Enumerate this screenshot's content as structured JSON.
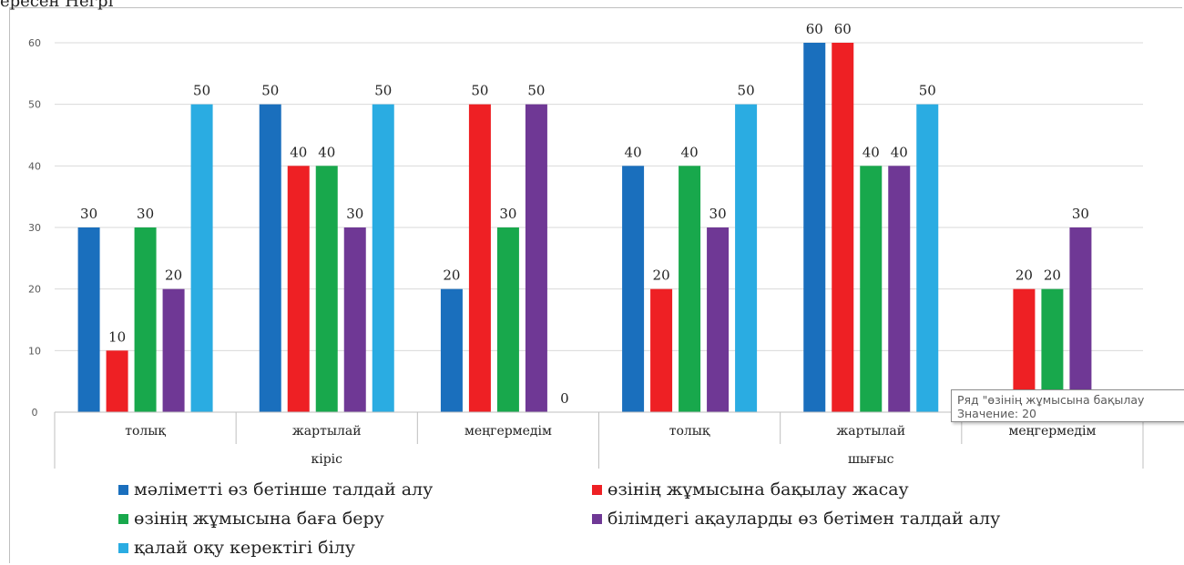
{
  "page": {
    "top_text": "ересен Негрі"
  },
  "tooltip": {
    "line1": "Ряд \"өзінің жұмысына бақылау",
    "line2": "Значение: 20"
  },
  "chart_data": {
    "type": "bar",
    "groups": [
      {
        "label": "кіріс",
        "categories": [
          "толық",
          "жартылай",
          "меңгермедім"
        ]
      },
      {
        "label": "шығыс",
        "categories": [
          "толық",
          "жартылай",
          "меңгермедім"
        ]
      }
    ],
    "categories": [
      "толық",
      "жартылай",
      "меңгермедім",
      "толық",
      "жартылай",
      "меңгермедім"
    ],
    "series": [
      {
        "name": "мәліметті өз бетінше талдай алу",
        "color": "#1a6fbd",
        "values": [
          30,
          50,
          20,
          40,
          60,
          null
        ]
      },
      {
        "name": "өзінің жұмысына бақылау жасау",
        "color": "#ee2024",
        "values": [
          10,
          40,
          50,
          20,
          60,
          20
        ]
      },
      {
        "name": "өзінің жұмысына баға беру",
        "color": "#18a84c",
        "values": [
          30,
          40,
          30,
          40,
          40,
          20
        ]
      },
      {
        "name": "білімдегі ақауларды өз бетімен талдай алу",
        "color": "#6f3895",
        "values": [
          20,
          30,
          50,
          30,
          40,
          30
        ]
      },
      {
        "name": "қалай оқу керектігі білу",
        "color": "#2aace2",
        "values": [
          50,
          50,
          0,
          50,
          50,
          null
        ]
      }
    ],
    "yticks": [
      "0",
      "10",
      "20",
      "30",
      "40",
      "50",
      "60"
    ],
    "ylim": [
      0,
      60
    ],
    "grid": true,
    "legend_position": "bottom"
  }
}
